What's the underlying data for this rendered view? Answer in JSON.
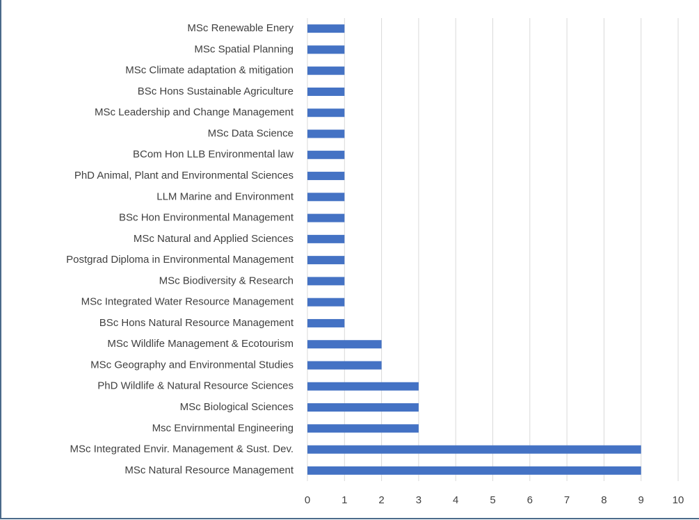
{
  "chart_data": {
    "type": "barh",
    "categories": [
      "MSc Renewable Enery",
      "MSc Spatial Planning",
      "MSc Climate adaptation & mitigation",
      "BSc Hons Sustainable Agriculture",
      "MSc Leadership and Change Management",
      "MSc Data Science",
      "BCom Hon LLB Environmental law",
      "PhD Animal, Plant and Environmental Sciences",
      "LLM Marine and Environment",
      "BSc Hon Environmental Management",
      "MSc Natural and Applied Sciences",
      "Postgrad Diploma in Environmental Management",
      "MSc Biodiversity & Research",
      "MSc Integrated Water Resource Management",
      "BSc Hons Natural Resource Management",
      "MSc Wildlife Management & Ecotourism",
      "MSc Geography and Environmental Studies",
      "PhD Wildlife & Natural Resource Sciences",
      "MSc Biological Sciences",
      "Msc Envirnmental Engineering",
      "MSc Integrated Envir. Management & Sust. Dev.",
      "MSc Natural Resource Management"
    ],
    "values": [
      1,
      1,
      1,
      1,
      1,
      1,
      1,
      1,
      1,
      1,
      1,
      1,
      1,
      1,
      1,
      2,
      2,
      3,
      3,
      3,
      9,
      9
    ],
    "color": "#4472c4",
    "xlim": [
      0,
      10
    ],
    "xticks": [
      0,
      1,
      2,
      3,
      4,
      5,
      6,
      7,
      8,
      9,
      10
    ],
    "grid": true
  }
}
